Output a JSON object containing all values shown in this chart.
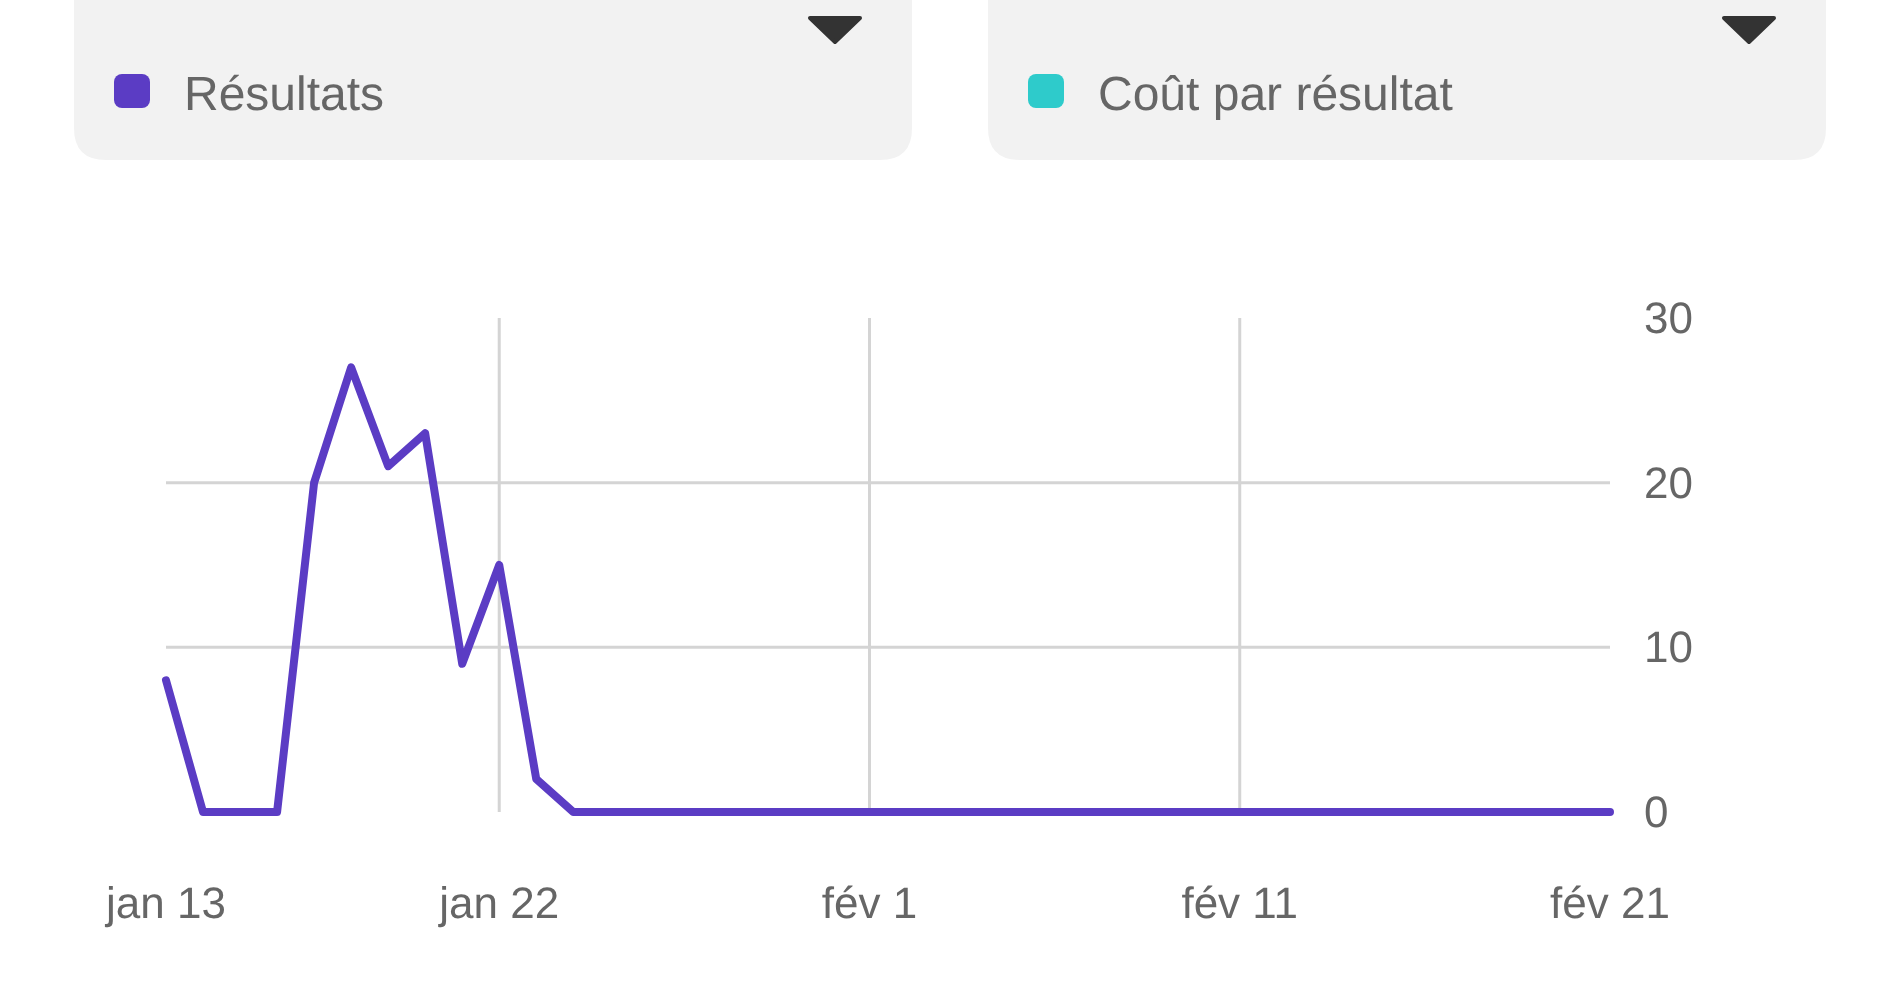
{
  "chart_data": {
    "type": "line",
    "x": [
      "--01-13",
      "--01-14",
      "--01-15",
      "--01-16",
      "--01-17",
      "--01-18",
      "--01-19",
      "--01-20",
      "--01-21",
      "--01-22",
      "--01-23",
      "--01-24",
      "--01-25",
      "--01-26",
      "--01-27",
      "--01-28",
      "--01-29",
      "--01-30",
      "--01-31",
      "--02-01",
      "--02-02",
      "--02-03",
      "--02-04",
      "--02-05",
      "--02-06",
      "--02-07",
      "--02-08",
      "--02-09",
      "--02-10",
      "--02-11",
      "--02-12",
      "--02-13",
      "--02-14",
      "--02-15",
      "--02-16",
      "--02-17",
      "--02-18",
      "--02-19",
      "--02-20",
      "--02-21"
    ],
    "series": [
      {
        "name": "Résultats",
        "color": "#5b3cc4",
        "values": [
          8,
          0,
          0,
          0,
          20,
          27,
          21,
          23,
          9,
          15,
          2,
          0,
          0,
          0,
          0,
          0,
          0,
          0,
          0,
          0,
          0,
          0,
          0,
          0,
          0,
          0,
          0,
          0,
          0,
          0,
          0,
          0,
          0,
          0,
          0,
          0,
          0,
          0,
          0,
          0
        ]
      },
      {
        "name": "Coût par résultat",
        "color": "#2ecbcb",
        "values": [
          null,
          null,
          null,
          null,
          null,
          null,
          null,
          null,
          null,
          null,
          null,
          null,
          null,
          null,
          null,
          null,
          null,
          null,
          null,
          null,
          null,
          null,
          null,
          null,
          null,
          null,
          null,
          null,
          null,
          null,
          null,
          null,
          null,
          null,
          null,
          null,
          null,
          null,
          null,
          null
        ]
      }
    ],
    "xlim": [
      "--01-13",
      "--02-21"
    ],
    "xticks": [
      {
        "value": "--01-13",
        "label": "jan 13"
      },
      {
        "value": "--01-22",
        "label": "jan 22"
      },
      {
        "value": "--02-01",
        "label": "fév 1"
      },
      {
        "value": "--02-11",
        "label": "fév 11"
      },
      {
        "value": "--02-21",
        "label": "fév 21"
      }
    ],
    "ylim": [
      0,
      30
    ],
    "yticks": [
      0,
      10,
      20,
      30
    ],
    "grid": true,
    "legend": "top"
  }
}
